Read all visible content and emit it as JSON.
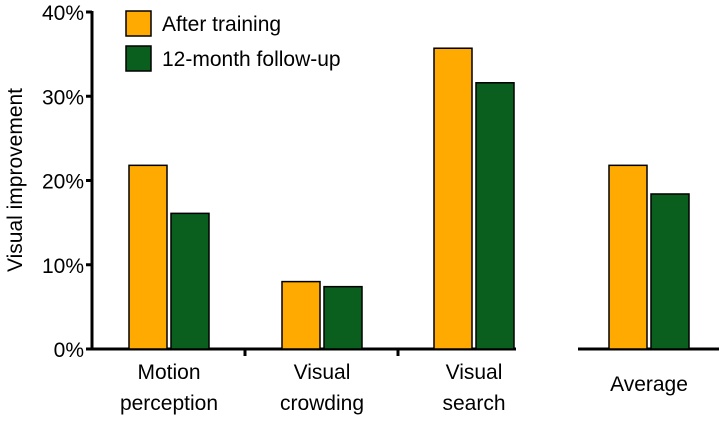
{
  "chart_data": {
    "type": "bar",
    "ylabel": "Visual improvement",
    "ylim": [
      0,
      40
    ],
    "yticks": [
      "0%",
      "10%",
      "20%",
      "30%",
      "40%"
    ],
    "grid": false,
    "legend_position": "top-left",
    "categories": [
      [
        "Motion",
        "perception"
      ],
      [
        "Visual",
        "crowding"
      ],
      [
        "Visual",
        "search"
      ],
      [
        "Average"
      ]
    ],
    "series": [
      {
        "name": "After training",
        "color": "#FFAA00",
        "values": [
          21.8,
          8.0,
          35.7,
          21.8
        ]
      },
      {
        "name": "12-month follow-up",
        "color": "#0A5E1E",
        "values": [
          16.1,
          7.4,
          31.6,
          18.4
        ]
      }
    ]
  }
}
